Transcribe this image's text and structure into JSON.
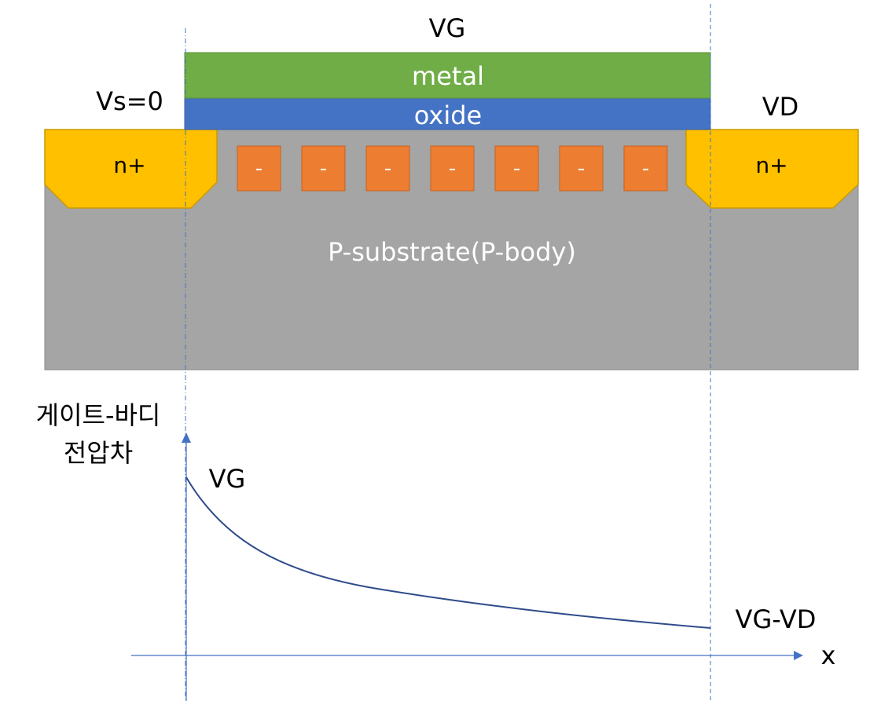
{
  "labels": {
    "gate_voltage": "VG",
    "metal": "metal",
    "oxide": "oxide",
    "source_voltage": "Vs=0",
    "drain_voltage": "VD",
    "source_region": "n+",
    "drain_region": "n+",
    "substrate": "P-substrate(P-body)",
    "y_axis_line1": "게이트-바디",
    "y_axis_line2": "전압차",
    "curve_start": "VG",
    "curve_end": "VG-VD",
    "x_axis": "x"
  },
  "charges": [
    "-",
    "-",
    "-",
    "-",
    "-",
    "-",
    "-"
  ],
  "colors": {
    "metal": "#70ad47",
    "oxide": "#4472c4",
    "n_plus": "#ffc000",
    "substrate": "#a5a5a5",
    "charge": "#ed7d31",
    "axis": "#4472c4",
    "curve": "#2f4b8c"
  }
}
